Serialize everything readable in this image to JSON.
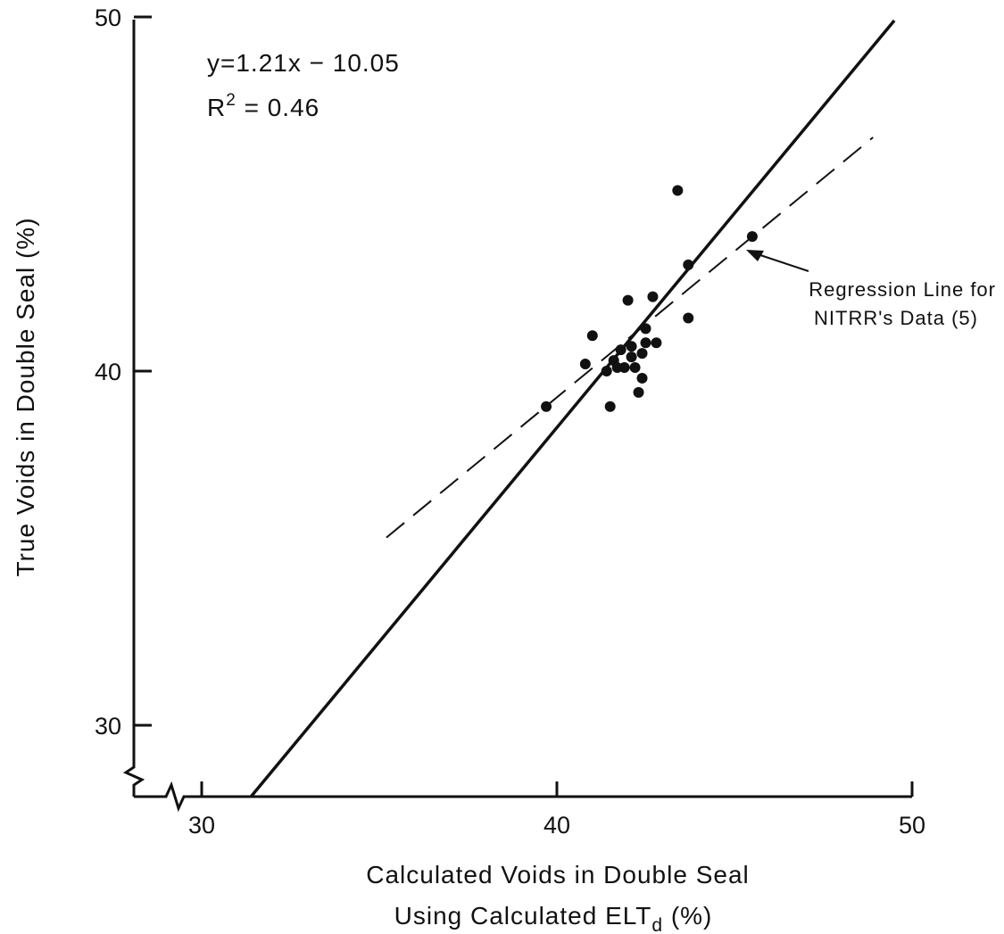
{
  "chart_data": {
    "type": "scatter",
    "title": "",
    "xlabel": "Calculated Voids in Double Seal",
    "xlabel_line2": "Using Calculated ELT",
    "xlabel_sub": "d",
    "xlabel_unit": " (%)",
    "ylabel": "True Voids in Double Seal (%)",
    "xlim": [
      28,
      50
    ],
    "ylim": [
      28,
      50
    ],
    "x_axis_break": true,
    "y_axis_break": true,
    "grid": false,
    "x_ticks": [
      30,
      40,
      50
    ],
    "y_ticks": [
      30,
      40,
      50
    ],
    "x_tick_labels": [
      "30",
      "40",
      "50"
    ],
    "y_tick_labels": [
      "30",
      "40",
      "50"
    ],
    "equation_line1": "y=1.21x − 10.05",
    "equation_line2_prefix": "R",
    "equation_line2_sup": "2",
    "equation_line2_suffix": " = 0.46",
    "annotation_line1": "Regression Line for",
    "annotation_line2": "NITRR's Data (5)",
    "series": [
      {
        "type": "scatter",
        "points": [
          {
            "x": 39.7,
            "y": 39.0
          },
          {
            "x": 40.8,
            "y": 40.2
          },
          {
            "x": 41.0,
            "y": 41.0
          },
          {
            "x": 41.4,
            "y": 40.0
          },
          {
            "x": 41.5,
            "y": 39.0
          },
          {
            "x": 41.6,
            "y": 40.3
          },
          {
            "x": 41.7,
            "y": 40.1
          },
          {
            "x": 41.8,
            "y": 40.6
          },
          {
            "x": 41.9,
            "y": 40.1
          },
          {
            "x": 42.0,
            "y": 42.0
          },
          {
            "x": 42.1,
            "y": 40.4
          },
          {
            "x": 42.1,
            "y": 40.7
          },
          {
            "x": 42.2,
            "y": 40.1
          },
          {
            "x": 42.3,
            "y": 39.4
          },
          {
            "x": 42.4,
            "y": 40.5
          },
          {
            "x": 42.4,
            "y": 39.8
          },
          {
            "x": 42.5,
            "y": 41.2
          },
          {
            "x": 42.5,
            "y": 40.8
          },
          {
            "x": 42.7,
            "y": 42.1
          },
          {
            "x": 42.8,
            "y": 40.8
          },
          {
            "x": 43.4,
            "y": 45.1
          },
          {
            "x": 43.7,
            "y": 43.0
          },
          {
            "x": 43.7,
            "y": 41.5
          },
          {
            "x": 45.5,
            "y": 43.8
          }
        ]
      },
      {
        "type": "line",
        "style": "solid",
        "points": [
          {
            "x": 31.4,
            "y": 28.0
          },
          {
            "x": 49.5,
            "y": 49.9
          }
        ]
      },
      {
        "type": "line",
        "style": "dashed",
        "points": [
          {
            "x": 35.2,
            "y": 35.3
          },
          {
            "x": 48.9,
            "y": 46.6
          }
        ]
      }
    ]
  }
}
